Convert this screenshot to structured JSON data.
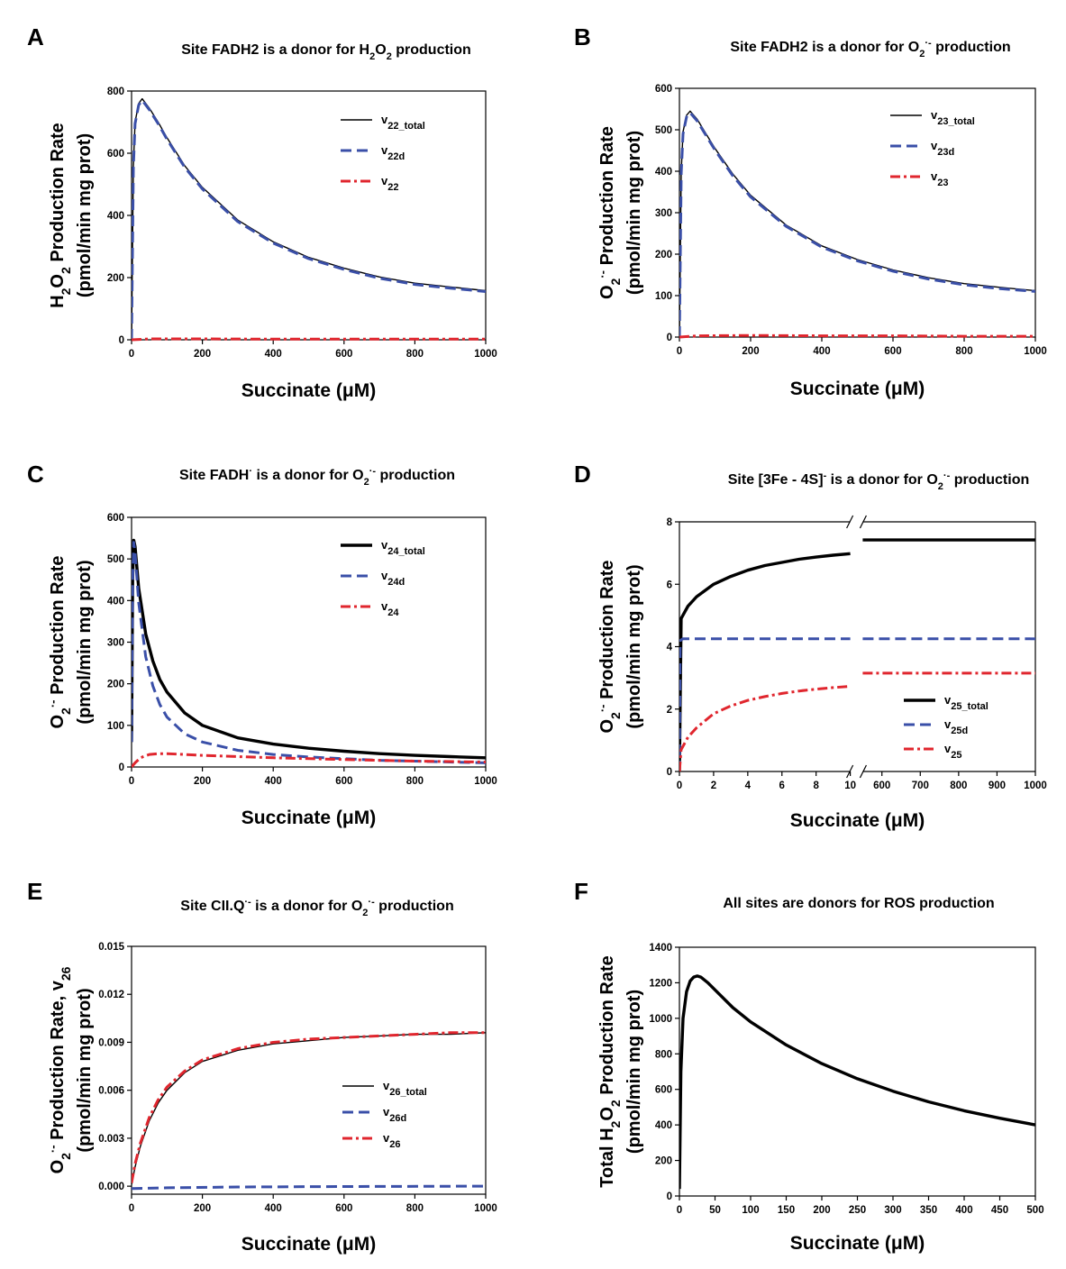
{
  "chart_data": [
    {
      "panel": "A",
      "type": "line",
      "title": {
        "pre": "Site FADH2 is a donor for H",
        "s1": "2",
        "mid": "O",
        "s2": "2",
        "post": " production"
      },
      "xlabel": {
        "main": "Succinate (",
        "mu": "μ",
        "rest": "M)"
      },
      "ylabel_line1": {
        "a": "H",
        "b": "2",
        "c": "O",
        "d": "2",
        "e": " Production Rate"
      },
      "ylabel_line2": "(pmol/min mg prot)",
      "xlim": [
        0,
        1000
      ],
      "ylim": [
        0,
        800
      ],
      "xticks": [
        0,
        200,
        400,
        600,
        800,
        1000
      ],
      "yticks": [
        0,
        200,
        400,
        600,
        800
      ],
      "series": [
        {
          "name": "v22_total",
          "label": "v",
          "sub": "22_total",
          "style": "solid-thin",
          "color": "#000000",
          "x": [
            0,
            5,
            10,
            20,
            30,
            50,
            75,
            100,
            150,
            200,
            300,
            400,
            500,
            600,
            700,
            800,
            900,
            1000
          ],
          "y": [
            0,
            560,
            700,
            760,
            775,
            745,
            700,
            650,
            560,
            490,
            385,
            315,
            265,
            230,
            202,
            182,
            170,
            158
          ]
        },
        {
          "name": "v22d",
          "label": "v",
          "sub": "22d",
          "style": "dashed",
          "color": "#3a4fa8",
          "x": [
            0,
            5,
            10,
            20,
            30,
            50,
            75,
            100,
            150,
            200,
            300,
            400,
            500,
            600,
            700,
            800,
            900,
            1000
          ],
          "y": [
            0,
            555,
            695,
            755,
            770,
            740,
            695,
            645,
            555,
            485,
            380,
            311,
            261,
            226,
            198,
            178,
            166,
            155
          ]
        },
        {
          "name": "v22",
          "label": "v",
          "sub": "22",
          "style": "dashdot",
          "color": "#e0262e",
          "x": [
            0,
            50,
            200,
            400,
            600,
            800,
            1000
          ],
          "y": [
            0,
            3,
            3,
            2,
            2,
            2,
            2
          ]
        }
      ]
    },
    {
      "panel": "B",
      "type": "line",
      "title": {
        "pre": "Site FADH2 is a donor for O",
        "s1": "2",
        "sup": "·-",
        "post": "  production"
      },
      "xlabel": {
        "main": "Succinate (",
        "mu": "μ",
        "rest": "M)"
      },
      "ylabel_line1": {
        "a": "O",
        "b": "2",
        "sup": "·-",
        "e": "  Production Rate"
      },
      "ylabel_line2": "(pmol/min mg prot)",
      "xlim": [
        0,
        1000
      ],
      "ylim": [
        0,
        600
      ],
      "xticks": [
        0,
        200,
        400,
        600,
        800,
        1000
      ],
      "yticks": [
        0,
        100,
        200,
        300,
        400,
        500,
        600
      ],
      "series": [
        {
          "name": "v23_total",
          "label": "v",
          "sub": "23_total",
          "style": "solid-thin",
          "color": "#000000",
          "x": [
            0,
            5,
            10,
            20,
            30,
            50,
            75,
            100,
            150,
            200,
            300,
            400,
            500,
            600,
            700,
            800,
            900,
            1000
          ],
          "y": [
            0,
            400,
            495,
            535,
            545,
            525,
            490,
            455,
            393,
            342,
            270,
            220,
            187,
            162,
            143,
            129,
            120,
            112
          ]
        },
        {
          "name": "v23d",
          "label": "v",
          "sub": "23d",
          "style": "dashed",
          "color": "#3a4fa8",
          "x": [
            0,
            5,
            10,
            20,
            30,
            50,
            75,
            100,
            150,
            200,
            300,
            400,
            500,
            600,
            700,
            800,
            900,
            1000
          ],
          "y": [
            0,
            396,
            490,
            531,
            541,
            521,
            486,
            451,
            389,
            338,
            267,
            217,
            184,
            159,
            140,
            126,
            117,
            110
          ]
        },
        {
          "name": "v23",
          "label": "v",
          "sub": "23",
          "style": "dashdot",
          "color": "#e0262e",
          "x": [
            0,
            50,
            200,
            400,
            600,
            800,
            1000
          ],
          "y": [
            0,
            3,
            4,
            3,
            3,
            2,
            2
          ]
        }
      ]
    },
    {
      "panel": "C",
      "type": "line",
      "title": {
        "pre": "Site FADH",
        "sup1": "·",
        "pre2": " is a donor for O",
        "s1": "2",
        "sup": "·-",
        "post": "  production"
      },
      "xlabel": {
        "main": "Succinate (",
        "mu": "μ",
        "rest": "M)"
      },
      "ylabel_line1": {
        "a": "O",
        "b": "2",
        "sup": "·-",
        "e": "  Production Rate"
      },
      "ylabel_line2": "(pmol/min mg prot)",
      "xlim": [
        0,
        1000
      ],
      "ylim": [
        0,
        600
      ],
      "xticks": [
        0,
        200,
        400,
        600,
        800,
        1000
      ],
      "yticks": [
        0,
        100,
        200,
        300,
        400,
        500,
        600
      ],
      "series": [
        {
          "name": "v24_total",
          "label": "v",
          "sub": "24_total",
          "style": "solid-thick",
          "color": "#000000",
          "x": [
            0,
            3,
            6,
            10,
            20,
            40,
            60,
            80,
            100,
            150,
            200,
            300,
            400,
            500,
            600,
            700,
            800,
            900,
            1000
          ],
          "y": [
            60,
            450,
            545,
            530,
            430,
            320,
            255,
            210,
            180,
            130,
            100,
            70,
            55,
            45,
            38,
            32,
            28,
            25,
            22
          ]
        },
        {
          "name": "v24d",
          "label": "v",
          "sub": "24d",
          "style": "dashed",
          "color": "#3a4fa8",
          "x": [
            0,
            3,
            6,
            10,
            20,
            40,
            60,
            80,
            100,
            150,
            200,
            300,
            400,
            500,
            600,
            700,
            800,
            900,
            1000
          ],
          "y": [
            60,
            445,
            540,
            515,
            395,
            265,
            195,
            150,
            120,
            80,
            60,
            40,
            30,
            24,
            20,
            16,
            14,
            12,
            10
          ]
        },
        {
          "name": "v24",
          "label": "v",
          "sub": "24",
          "style": "dashdot",
          "color": "#e0262e",
          "x": [
            0,
            10,
            25,
            50,
            75,
            100,
            150,
            200,
            300,
            400,
            600,
            800,
            1000
          ],
          "y": [
            0,
            10,
            22,
            30,
            32,
            32,
            30,
            28,
            25,
            22,
            18,
            14,
            12
          ]
        }
      ]
    },
    {
      "panel": "D",
      "type": "line",
      "title": {
        "pre": "Site [3Fe - 4S]",
        "sup0": "-",
        "pre2": " is a donor for O",
        "s1": "2",
        "sup": "·-",
        "post": "  production"
      },
      "xlabel": {
        "main": "Succinate (",
        "mu": "μ",
        "rest": "M)"
      },
      "ylabel_line1": {
        "a": "O",
        "b": "2",
        "sup": "·-",
        "e": " Production Rate"
      },
      "ylabel_line2": "(pmol/min mg prot)",
      "broken_axis": true,
      "xlim_left": [
        0,
        10
      ],
      "xlim_right": [
        550,
        1000
      ],
      "ylim": [
        0,
        8
      ],
      "xticks_left": [
        0,
        2,
        4,
        6,
        8,
        10
      ],
      "xticks_right": [
        600,
        700,
        800,
        900,
        1000
      ],
      "yticks": [
        0,
        2,
        4,
        6,
        8
      ],
      "series": [
        {
          "name": "v25_total",
          "label": "v",
          "sub": "25_total",
          "style": "solid-thick",
          "color": "#000000",
          "x_left": [
            0,
            0.1,
            0.5,
            1,
            2,
            3,
            4,
            5,
            6,
            7,
            8,
            9,
            10
          ],
          "y_left": [
            0,
            4.9,
            5.3,
            5.6,
            6.0,
            6.25,
            6.45,
            6.6,
            6.7,
            6.8,
            6.87,
            6.93,
            6.98
          ],
          "x_right": [
            550,
            1000
          ],
          "y_right": [
            7.42,
            7.42
          ]
        },
        {
          "name": "v25d",
          "label": "v",
          "sub": "25d",
          "style": "dashed",
          "color": "#3a4fa8",
          "x_left": [
            0,
            0.05,
            0.2,
            10
          ],
          "y_left": [
            0,
            4.2,
            4.25,
            4.25
          ],
          "x_right": [
            550,
            1000
          ],
          "y_right": [
            4.25,
            4.25
          ]
        },
        {
          "name": "v25",
          "label": "v",
          "sub": "25",
          "style": "dashdot",
          "color": "#e0262e",
          "x_left": [
            0,
            0.1,
            0.5,
            1,
            2,
            3,
            4,
            5,
            6,
            7,
            8,
            9,
            10
          ],
          "y_left": [
            0,
            0.7,
            1.1,
            1.4,
            1.85,
            2.1,
            2.28,
            2.4,
            2.5,
            2.58,
            2.64,
            2.69,
            2.73
          ],
          "x_right": [
            550,
            1000
          ],
          "y_right": [
            3.15,
            3.15
          ]
        }
      ]
    },
    {
      "panel": "E",
      "type": "line",
      "title": {
        "pre": "Site CII.Q",
        "sup0": "·-",
        "pre2": "  is a donor for O",
        "s1": "2",
        "sup": "·-",
        "post": "  production"
      },
      "xlabel": {
        "main": "Succinate (",
        "mu": "μ",
        "rest": "M)"
      },
      "ylabel_line1": {
        "a": "O",
        "b": "2",
        "sup": "·-",
        "e": " Production Rate, v",
        "f": "26"
      },
      "ylabel_line2": "(pmol/min mg prot)",
      "xlim": [
        0,
        1000
      ],
      "ylim": [
        -0.0005,
        0.015
      ],
      "xticks": [
        0,
        200,
        400,
        600,
        800,
        1000
      ],
      "yticks": [
        0.0,
        0.003,
        0.006,
        0.009,
        0.012,
        0.015
      ],
      "ytick_labels": [
        "0.000",
        "0.003",
        "0.006",
        "0.009",
        "0.012",
        "0.015"
      ],
      "series": [
        {
          "name": "v26_total",
          "label": "v",
          "sub": "26_total",
          "style": "solid-thin",
          "color": "#000000",
          "x": [
            0,
            10,
            25,
            50,
            75,
            100,
            150,
            200,
            300,
            400,
            500,
            600,
            700,
            800,
            900,
            1000
          ],
          "y": [
            0.0001,
            0.0012,
            0.0025,
            0.0041,
            0.0052,
            0.006,
            0.0071,
            0.0078,
            0.0085,
            0.0089,
            0.0091,
            0.0093,
            0.0094,
            0.0095,
            0.0095,
            0.0096
          ]
        },
        {
          "name": "v26d",
          "label": "v",
          "sub": "26d",
          "style": "dashed",
          "color": "#3a4fa8",
          "x": [
            0,
            100,
            300,
            600,
            1000
          ],
          "y": [
            -0.00015,
            -0.0001,
            -5e-05,
            -2e-05,
            0
          ]
        },
        {
          "name": "v26",
          "label": "v",
          "sub": "26",
          "style": "dashdot",
          "color": "#e0262e",
          "x": [
            0,
            10,
            25,
            50,
            75,
            100,
            150,
            200,
            300,
            400,
            500,
            600,
            700,
            800,
            900,
            1000
          ],
          "y": [
            0.0002,
            0.0014,
            0.0027,
            0.0043,
            0.0054,
            0.0062,
            0.0072,
            0.0079,
            0.0086,
            0.009,
            0.0092,
            0.0093,
            0.0094,
            0.0095,
            0.0096,
            0.0096
          ]
        }
      ]
    },
    {
      "panel": "F",
      "type": "line",
      "title": {
        "pre": "All sites are donors for ROS production"
      },
      "xlabel": {
        "main": "Succinate (",
        "mu": "μ",
        "rest": "M)"
      },
      "ylabel_line1": {
        "a": "Total H",
        "b": "2",
        "c": "O",
        "d": "2",
        "e": " Production Rate"
      },
      "ylabel_line2": "(pmol/min mg prot)",
      "xlim": [
        0,
        500
      ],
      "ylim": [
        0,
        1400
      ],
      "xticks": [
        0,
        50,
        100,
        150,
        200,
        250,
        300,
        350,
        400,
        450,
        500
      ],
      "yticks": [
        0,
        200,
        400,
        600,
        800,
        1000,
        1200,
        1400
      ],
      "series": [
        {
          "name": "total",
          "style": "solid-thick",
          "color": "#000000",
          "x": [
            0,
            2,
            5,
            10,
            15,
            20,
            25,
            30,
            40,
            50,
            75,
            100,
            150,
            200,
            250,
            300,
            350,
            400,
            450,
            500
          ],
          "y": [
            40,
            700,
            1000,
            1150,
            1210,
            1232,
            1238,
            1232,
            1200,
            1160,
            1060,
            980,
            850,
            745,
            660,
            590,
            530,
            480,
            438,
            400
          ]
        }
      ]
    }
  ]
}
